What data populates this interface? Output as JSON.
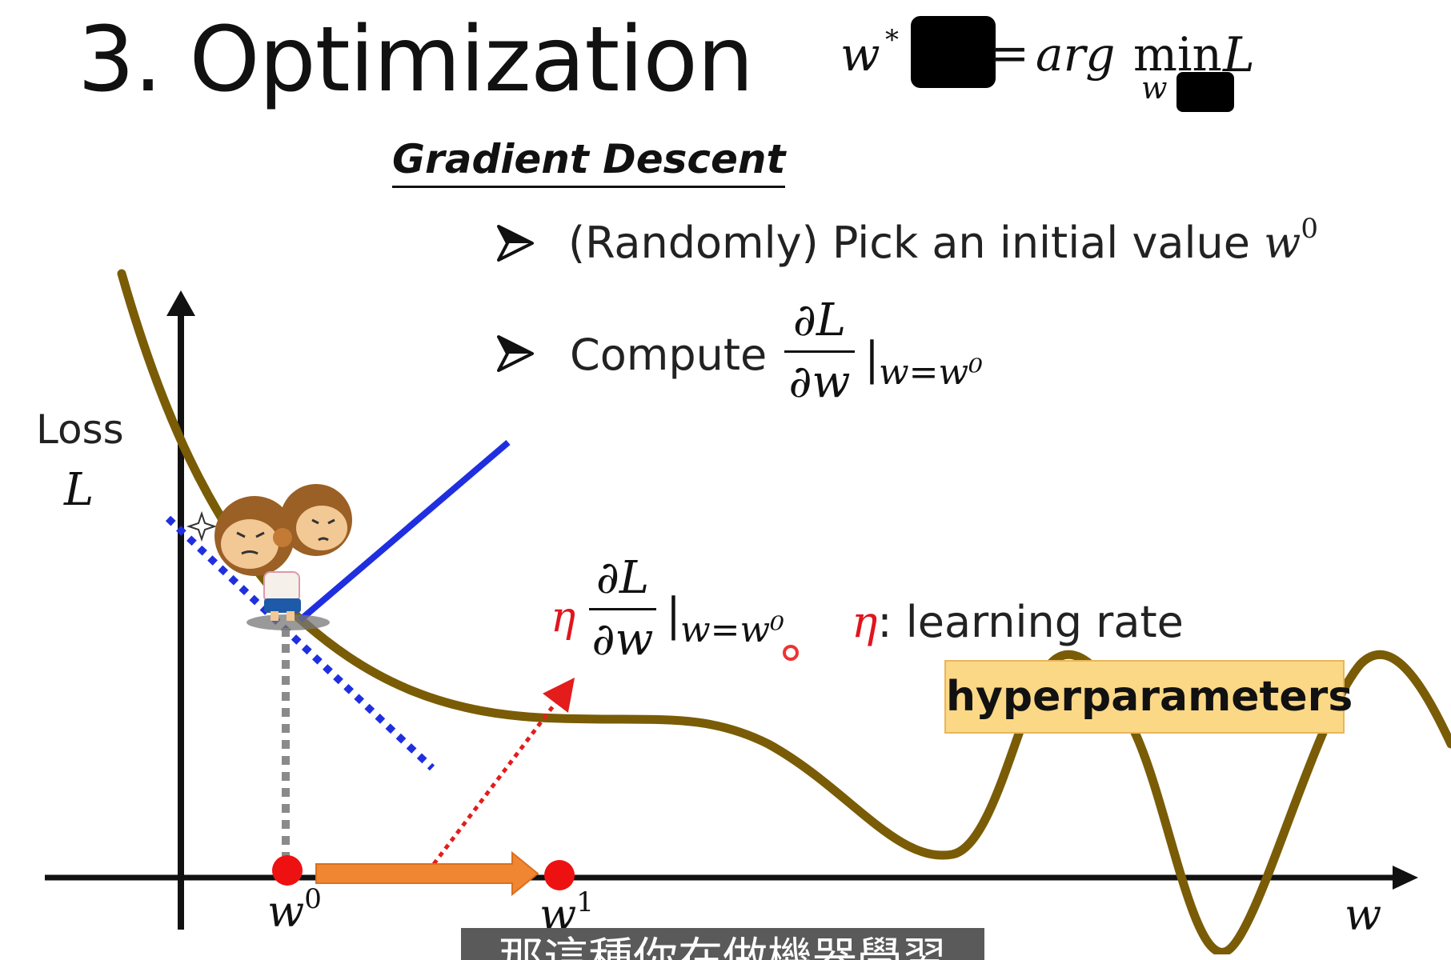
{
  "title": "3. Optimization",
  "equation": {
    "lhs": "w",
    "star": "*",
    "eq": "=",
    "arg": "arg",
    "min": "min",
    "rhs": "L",
    "sub": "w"
  },
  "section_title": "Gradient Descent",
  "bullets": [
    {
      "text": "(Randomly) Pick an initial value ",
      "var": "w",
      "sup": "0"
    },
    {
      "text": "Compute"
    }
  ],
  "derivative": {
    "num": "∂L",
    "den": "∂w",
    "bar": "|",
    "eval": "w=w⁰"
  },
  "axis": {
    "y_word": "Loss",
    "y_var": "L",
    "x_var": "w"
  },
  "points": [
    {
      "label": "w",
      "sup": "0"
    },
    {
      "label": "w",
      "sup": "1"
    }
  ],
  "step": {
    "eta": "η"
  },
  "learning_rate": {
    "eta": "η",
    "text": ": learning rate"
  },
  "badge": "hyperparameters",
  "caption": "那這種你在做機器學習",
  "colors": {
    "curve": "#7a5c07",
    "tangent": "#1f2fe0",
    "point": "#ee1111",
    "step_arrow": "#f08532",
    "eta": "#e0151d",
    "badge_fill": "#fbd886"
  }
}
